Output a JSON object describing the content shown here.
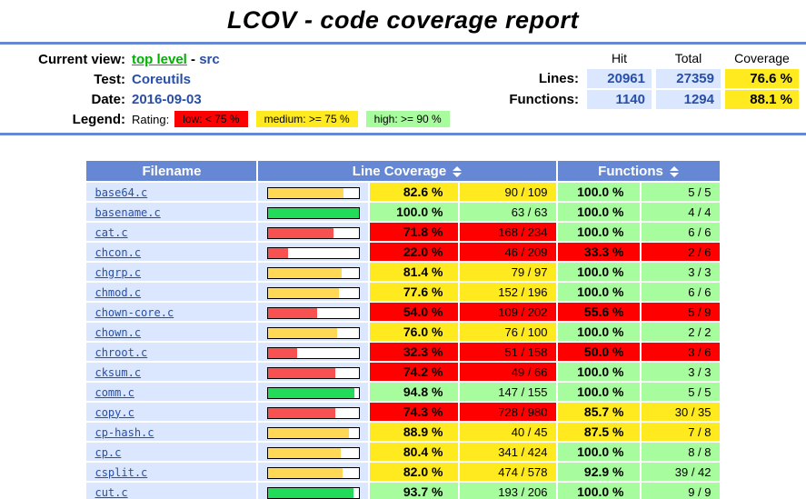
{
  "page": {
    "title": "LCOV - code coverage report"
  },
  "header": {
    "current_view_label": "Current view:",
    "current_view_link": "top level",
    "separator": " - ",
    "current_view_current": "src",
    "test_label": "Test:",
    "test_value": "Coreutils",
    "date_label": "Date:",
    "date_value": "2016-09-03",
    "legend_label": "Legend:",
    "rating_label": "Rating:",
    "legend_items": [
      {
        "label": "low: < 75 %",
        "level": "lo",
        "color": "#FF0000"
      },
      {
        "label": "medium: >= 75 %",
        "level": "med",
        "color": "#FFEA20"
      },
      {
        "label": "high: >= 90 %",
        "level": "hi",
        "color": "#A7FC9D"
      }
    ],
    "summary": {
      "columns": [
        "Hit",
        "Total",
        "Coverage"
      ],
      "rows": [
        {
          "label": "Lines:",
          "hit": "20961",
          "total": "27359",
          "coverage": "76.6 %"
        },
        {
          "label": "Functions:",
          "hit": "1140",
          "total": "1294",
          "coverage": "88.1 %"
        }
      ]
    }
  },
  "table": {
    "headers": {
      "filename": "Filename",
      "line_coverage": "Line Coverage",
      "functions": "Functions",
      "sort_icon": "sort-updown"
    },
    "rows": [
      {
        "file": "base64.c",
        "line_pct": "82.6 %",
        "line_pct_num": 82.6,
        "line_ratio": "90 / 109",
        "line_class": "med",
        "func_pct": "100.0 %",
        "func_ratio": "5 / 5",
        "func_class": "hi"
      },
      {
        "file": "basename.c",
        "line_pct": "100.0 %",
        "line_pct_num": 100.0,
        "line_ratio": "63 / 63",
        "line_class": "hi",
        "func_pct": "100.0 %",
        "func_ratio": "4 / 4",
        "func_class": "hi"
      },
      {
        "file": "cat.c",
        "line_pct": "71.8 %",
        "line_pct_num": 71.8,
        "line_ratio": "168 / 234",
        "line_class": "lo",
        "func_pct": "100.0 %",
        "func_ratio": "6 / 6",
        "func_class": "hi"
      },
      {
        "file": "chcon.c",
        "line_pct": "22.0 %",
        "line_pct_num": 22.0,
        "line_ratio": "46 / 209",
        "line_class": "lo",
        "func_pct": "33.3 %",
        "func_ratio": "2 / 6",
        "func_class": "lo"
      },
      {
        "file": "chgrp.c",
        "line_pct": "81.4 %",
        "line_pct_num": 81.4,
        "line_ratio": "79 / 97",
        "line_class": "med",
        "func_pct": "100.0 %",
        "func_ratio": "3 / 3",
        "func_class": "hi"
      },
      {
        "file": "chmod.c",
        "line_pct": "77.6 %",
        "line_pct_num": 77.6,
        "line_ratio": "152 / 196",
        "line_class": "med",
        "func_pct": "100.0 %",
        "func_ratio": "6 / 6",
        "func_class": "hi"
      },
      {
        "file": "chown-core.c",
        "line_pct": "54.0 %",
        "line_pct_num": 54.0,
        "line_ratio": "109 / 202",
        "line_class": "lo",
        "func_pct": "55.6 %",
        "func_ratio": "5 / 9",
        "func_class": "lo"
      },
      {
        "file": "chown.c",
        "line_pct": "76.0 %",
        "line_pct_num": 76.0,
        "line_ratio": "76 / 100",
        "line_class": "med",
        "func_pct": "100.0 %",
        "func_ratio": "2 / 2",
        "func_class": "hi"
      },
      {
        "file": "chroot.c",
        "line_pct": "32.3 %",
        "line_pct_num": 32.3,
        "line_ratio": "51 / 158",
        "line_class": "lo",
        "func_pct": "50.0 %",
        "func_ratio": "3 / 6",
        "func_class": "lo"
      },
      {
        "file": "cksum.c",
        "line_pct": "74.2 %",
        "line_pct_num": 74.2,
        "line_ratio": "49 / 66",
        "line_class": "lo",
        "func_pct": "100.0 %",
        "func_ratio": "3 / 3",
        "func_class": "hi"
      },
      {
        "file": "comm.c",
        "line_pct": "94.8 %",
        "line_pct_num": 94.8,
        "line_ratio": "147 / 155",
        "line_class": "hi",
        "func_pct": "100.0 %",
        "func_ratio": "5 / 5",
        "func_class": "hi"
      },
      {
        "file": "copy.c",
        "line_pct": "74.3 %",
        "line_pct_num": 74.3,
        "line_ratio": "728 / 980",
        "line_class": "lo",
        "func_pct": "85.7 %",
        "func_ratio": "30 / 35",
        "func_class": "med"
      },
      {
        "file": "cp-hash.c",
        "line_pct": "88.9 %",
        "line_pct_num": 88.9,
        "line_ratio": "40 / 45",
        "line_class": "med",
        "func_pct": "87.5 %",
        "func_ratio": "7 / 8",
        "func_class": "med"
      },
      {
        "file": "cp.c",
        "line_pct": "80.4 %",
        "line_pct_num": 80.4,
        "line_ratio": "341 / 424",
        "line_class": "med",
        "func_pct": "100.0 %",
        "func_ratio": "8 / 8",
        "func_class": "hi"
      },
      {
        "file": "csplit.c",
        "line_pct": "82.0 %",
        "line_pct_num": 82.0,
        "line_ratio": "474 / 578",
        "line_class": "med",
        "func_pct": "92.9 %",
        "func_ratio": "39 / 42",
        "func_class": "hi"
      },
      {
        "file": "cut.c",
        "line_pct": "93.7 %",
        "line_pct_num": 93.7,
        "line_ratio": "193 / 206",
        "line_class": "hi",
        "func_pct": "100.0 %",
        "func_ratio": "9 / 9",
        "func_class": "hi"
      }
    ]
  },
  "colors": {
    "header_blue": "#6688D4",
    "cell_blue": "#DAE7FE",
    "low": "#FF0000",
    "medium": "#FFEA20",
    "high": "#A7FC9D",
    "bar_low": "#F85152",
    "bar_medium": "#FFD955",
    "bar_high": "#22DB58",
    "link_blue": "#284FA8",
    "link_green": "#00B000"
  }
}
